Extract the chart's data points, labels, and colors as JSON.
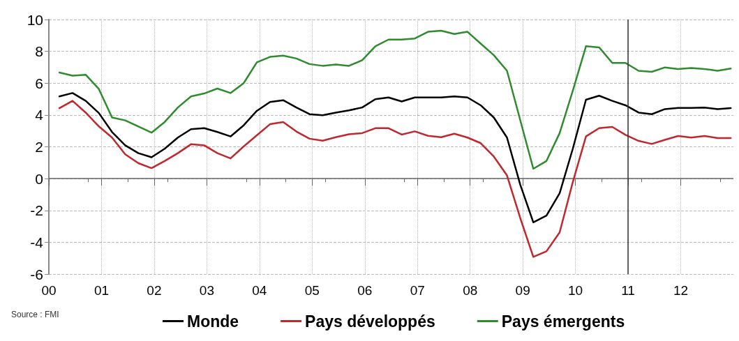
{
  "chart_data": {
    "type": "line",
    "x": [
      0.2,
      0.45,
      0.7,
      0.95,
      1.2,
      1.45,
      1.7,
      1.95,
      2.2,
      2.45,
      2.7,
      2.95,
      3.2,
      3.45,
      3.7,
      3.95,
      4.2,
      4.45,
      4.7,
      4.95,
      5.2,
      5.45,
      5.7,
      5.95,
      6.2,
      6.45,
      6.7,
      6.95,
      7.2,
      7.45,
      7.7,
      7.95,
      8.2,
      8.45,
      8.7,
      8.95,
      9.2,
      9.45,
      9.7,
      9.95,
      10.2,
      10.45,
      10.7,
      10.95,
      11.2,
      11.45,
      11.7,
      11.95,
      12.2,
      12.45,
      12.7,
      12.95
    ],
    "series": [
      {
        "name": "Monde",
        "color": "#000000",
        "values": [
          5.17,
          5.38,
          4.89,
          4.12,
          2.93,
          2.09,
          1.6,
          1.34,
          1.88,
          2.58,
          3.11,
          3.17,
          2.93,
          2.65,
          3.35,
          4.26,
          4.82,
          4.93,
          4.47,
          4.05,
          3.98,
          4.15,
          4.29,
          4.47,
          4.99,
          5.1,
          4.85,
          5.1,
          5.1,
          5.1,
          5.17,
          5.1,
          4.61,
          3.84,
          2.58,
          -0.36,
          -2.75,
          -2.32,
          -0.92,
          1.88,
          4.96,
          5.21,
          4.89,
          4.61,
          4.15,
          4.05,
          4.37,
          4.44,
          4.44,
          4.47,
          4.37,
          4.43
        ]
      },
      {
        "name": "Pays développés",
        "color": "#c0282d",
        "values": [
          4.43,
          4.89,
          4.15,
          3.28,
          2.58,
          1.53,
          0.97,
          0.66,
          1.11,
          1.6,
          2.16,
          2.09,
          1.6,
          1.27,
          2.02,
          2.72,
          3.42,
          3.56,
          2.96,
          2.51,
          2.38,
          2.6,
          2.79,
          2.86,
          3.17,
          3.17,
          2.77,
          2.97,
          2.69,
          2.6,
          2.82,
          2.58,
          2.23,
          1.39,
          0.2,
          -2.46,
          -4.92,
          -4.57,
          -3.38,
          -0.22,
          2.65,
          3.17,
          3.25,
          2.75,
          2.37,
          2.18,
          2.44,
          2.68,
          2.58,
          2.68,
          2.55,
          2.55
        ]
      },
      {
        "name": "Pays émergents",
        "color": "#2e8b2e",
        "values": [
          6.67,
          6.47,
          6.53,
          5.63,
          3.84,
          3.66,
          3.28,
          2.89,
          3.56,
          4.47,
          5.17,
          5.35,
          5.66,
          5.38,
          6.0,
          7.31,
          7.65,
          7.73,
          7.55,
          7.2,
          7.09,
          7.17,
          7.09,
          7.44,
          8.32,
          8.74,
          8.74,
          8.81,
          9.23,
          9.3,
          9.09,
          9.23,
          8.49,
          7.76,
          6.78,
          3.7,
          0.62,
          1.11,
          2.86,
          5.52,
          8.32,
          8.25,
          7.27,
          7.27,
          6.78,
          6.71,
          6.99,
          6.89,
          6.95,
          6.89,
          6.78,
          6.92
        ]
      }
    ],
    "xlim": [
      0,
      13
    ],
    "xticks": [
      {
        "value": 0,
        "label": "00"
      },
      {
        "value": 1,
        "label": "01"
      },
      {
        "value": 2,
        "label": "02"
      },
      {
        "value": 3,
        "label": "03"
      },
      {
        "value": 4,
        "label": "04"
      },
      {
        "value": 5,
        "label": "05"
      },
      {
        "value": 6,
        "label": "06"
      },
      {
        "value": 7,
        "label": "07"
      },
      {
        "value": 8,
        "label": "08"
      },
      {
        "value": 9,
        "label": "09"
      },
      {
        "value": 10,
        "label": "10"
      },
      {
        "value": 11,
        "label": "11"
      },
      {
        "value": 12,
        "label": "12"
      }
    ],
    "ylim": [
      -6,
      10
    ],
    "yticks": [
      -6,
      -4,
      -2,
      0,
      2,
      4,
      6,
      8,
      10
    ],
    "ref_lines": [
      {
        "axis": "x",
        "value": 11,
        "label": null,
        "color": "#333333",
        "line_style": "solid"
      }
    ],
    "annotations": [
      "Source : FMI"
    ],
    "grid": true,
    "legend": "bottom",
    "marker": "none",
    "line_style": "solid"
  }
}
